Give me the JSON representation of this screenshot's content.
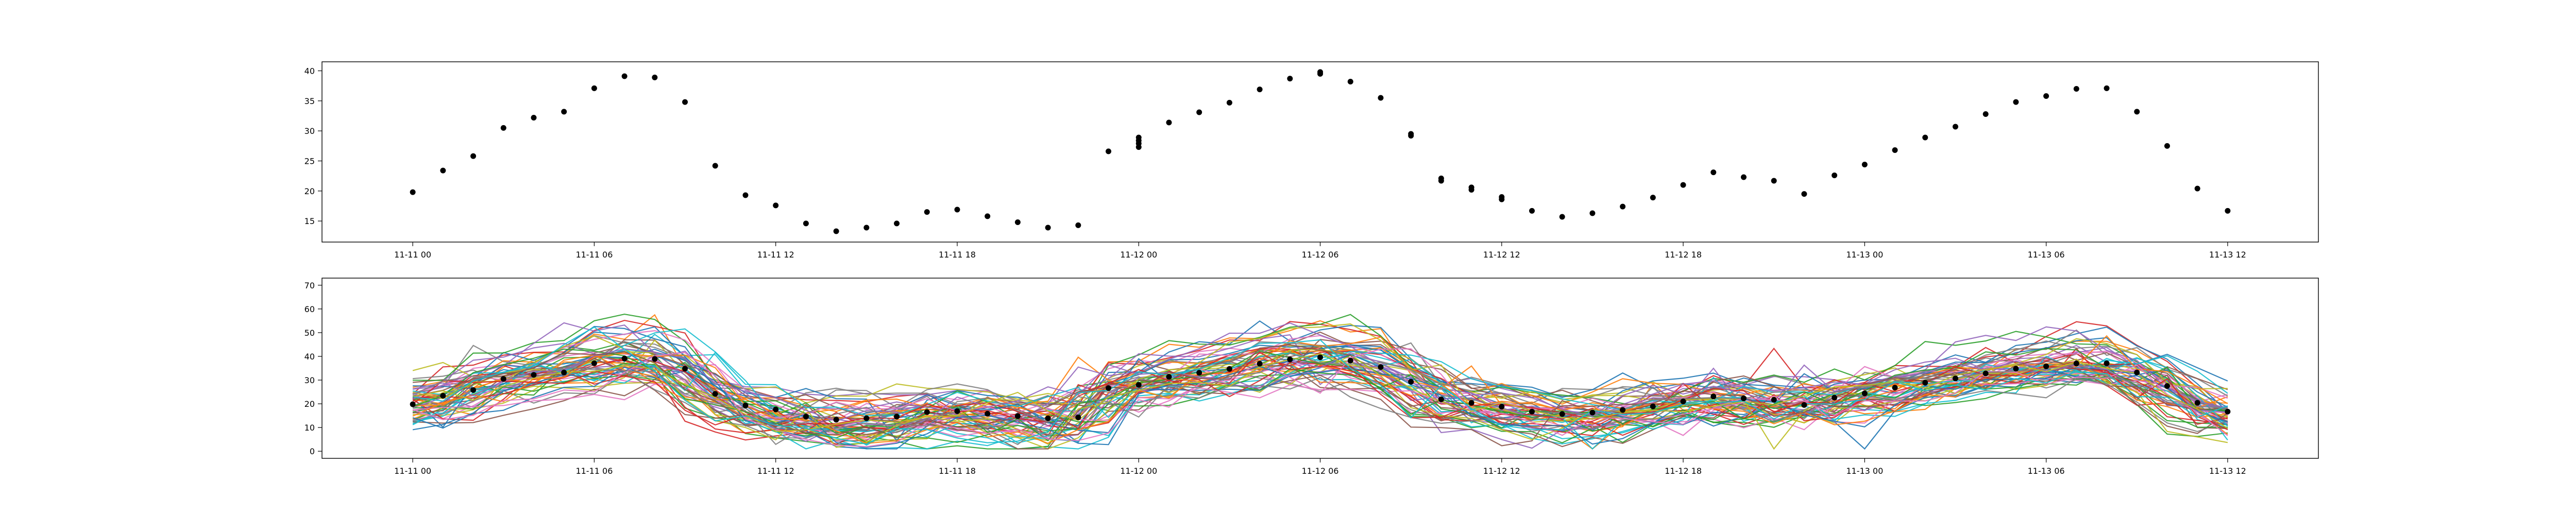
{
  "chart_data": [
    {
      "type": "scatter",
      "x_tick_labels": [
        "11-11 00",
        "11-11 06",
        "11-11 12",
        "11-11 18",
        "11-12 00",
        "11-12 06",
        "11-12 12",
        "11-12 18",
        "11-13 00",
        "11-13 06",
        "11-13 12"
      ],
      "x_ticks_hours": [
        0,
        6,
        12,
        18,
        24,
        30,
        36,
        42,
        48,
        54,
        60
      ],
      "xlim_hours": [
        -3,
        63
      ],
      "ylim": [
        11.5,
        41.5
      ],
      "y_ticks": [
        15,
        20,
        25,
        30,
        35,
        40
      ],
      "marker_color": "#000000",
      "points": [
        [
          0,
          19.8
        ],
        [
          1,
          23.4
        ],
        [
          2,
          25.8
        ],
        [
          3,
          30.5
        ],
        [
          4,
          32.2
        ],
        [
          5,
          33.2
        ],
        [
          6,
          37.1
        ],
        [
          7,
          39.1
        ],
        [
          8,
          38.9
        ],
        [
          9,
          34.8
        ],
        [
          10,
          24.2
        ],
        [
          11,
          19.3
        ],
        [
          12,
          17.6
        ],
        [
          13,
          14.6
        ],
        [
          14,
          13.3
        ],
        [
          15,
          13.9
        ],
        [
          16,
          14.6
        ],
        [
          17,
          16.5
        ],
        [
          18,
          16.9
        ],
        [
          19,
          15.8
        ],
        [
          20,
          14.8
        ],
        [
          21,
          13.9
        ],
        [
          22,
          14.3
        ],
        [
          23,
          26.6
        ],
        [
          24,
          27.3
        ],
        [
          24,
          27.9
        ],
        [
          24,
          28.4
        ],
        [
          24,
          28.9
        ],
        [
          25,
          31.4
        ],
        [
          26,
          33.1
        ],
        [
          27,
          34.7
        ],
        [
          28,
          36.9
        ],
        [
          29,
          38.7
        ],
        [
          30,
          39.5
        ],
        [
          30,
          39.8
        ],
        [
          31,
          38.2
        ],
        [
          32,
          35.5
        ],
        [
          33,
          29.2
        ],
        [
          33,
          29.5
        ],
        [
          34,
          22.1
        ],
        [
          34,
          21.7
        ],
        [
          35,
          20.6
        ],
        [
          35,
          20.2
        ],
        [
          36,
          19.0
        ],
        [
          36,
          18.6
        ],
        [
          37,
          16.7
        ],
        [
          38,
          15.7
        ],
        [
          39,
          16.3
        ],
        [
          40,
          17.4
        ],
        [
          41,
          18.9
        ],
        [
          42,
          21.0
        ],
        [
          43,
          23.1
        ],
        [
          44,
          22.3
        ],
        [
          45,
          21.7
        ],
        [
          46,
          19.5
        ],
        [
          47,
          22.6
        ],
        [
          48,
          24.4
        ],
        [
          49,
          26.8
        ],
        [
          50,
          28.9
        ],
        [
          51,
          30.7
        ],
        [
          52,
          32.8
        ],
        [
          53,
          34.8
        ],
        [
          54,
          35.8
        ],
        [
          55,
          37.0
        ],
        [
          56,
          37.1
        ],
        [
          57,
          33.2
        ],
        [
          58,
          27.5
        ],
        [
          59,
          20.4
        ],
        [
          60,
          16.7
        ]
      ]
    },
    {
      "type": "line",
      "x_tick_labels": [
        "11-11 00",
        "11-11 06",
        "11-11 12",
        "11-11 18",
        "11-12 00",
        "11-12 06",
        "11-12 12",
        "11-12 18",
        "11-13 00",
        "11-13 06",
        "11-13 12"
      ],
      "x_ticks_hours": [
        0,
        6,
        12,
        18,
        24,
        30,
        36,
        42,
        48,
        54,
        60
      ],
      "xlim_hours": [
        -3,
        63
      ],
      "ylim": [
        -3,
        73
      ],
      "y_ticks": [
        0,
        10,
        20,
        30,
        40,
        50,
        60,
        70
      ],
      "ensemble_member_count": 60,
      "ensemble_colors": [
        "#1f77b4",
        "#ff7f0e",
        "#2ca02c",
        "#d62728",
        "#9467bd",
        "#8c564b",
        "#e377c2",
        "#7f7f7f",
        "#bcbd22",
        "#17becf"
      ],
      "observed_marker_color": "#000000",
      "observed": [
        [
          0,
          19.8
        ],
        [
          1,
          23.4
        ],
        [
          2,
          25.8
        ],
        [
          3,
          30.5
        ],
        [
          4,
          32.2
        ],
        [
          5,
          33.2
        ],
        [
          6,
          37.1
        ],
        [
          7,
          39.1
        ],
        [
          8,
          38.9
        ],
        [
          9,
          34.8
        ],
        [
          10,
          24.2
        ],
        [
          11,
          19.3
        ],
        [
          12,
          17.6
        ],
        [
          13,
          14.6
        ],
        [
          14,
          13.3
        ],
        [
          15,
          13.9
        ],
        [
          16,
          14.6
        ],
        [
          17,
          16.5
        ],
        [
          18,
          16.9
        ],
        [
          19,
          15.8
        ],
        [
          20,
          14.8
        ],
        [
          21,
          13.9
        ],
        [
          22,
          14.3
        ],
        [
          23,
          26.6
        ],
        [
          24,
          28.0
        ],
        [
          25,
          31.4
        ],
        [
          26,
          33.1
        ],
        [
          27,
          34.7
        ],
        [
          28,
          36.9
        ],
        [
          29,
          38.7
        ],
        [
          30,
          39.6
        ],
        [
          31,
          38.2
        ],
        [
          32,
          35.5
        ],
        [
          33,
          29.3
        ],
        [
          34,
          21.9
        ],
        [
          35,
          20.4
        ],
        [
          36,
          18.8
        ],
        [
          37,
          16.7
        ],
        [
          38,
          15.7
        ],
        [
          39,
          16.3
        ],
        [
          40,
          17.4
        ],
        [
          41,
          18.9
        ],
        [
          42,
          21.0
        ],
        [
          43,
          23.1
        ],
        [
          44,
          22.3
        ],
        [
          45,
          21.7
        ],
        [
          46,
          19.5
        ],
        [
          47,
          22.6
        ],
        [
          48,
          24.4
        ],
        [
          49,
          26.8
        ],
        [
          50,
          28.9
        ],
        [
          51,
          30.7
        ],
        [
          52,
          32.8
        ],
        [
          53,
          34.8
        ],
        [
          54,
          35.8
        ],
        [
          55,
          37.0
        ],
        [
          56,
          37.1
        ],
        [
          57,
          33.2
        ],
        [
          58,
          27.5
        ],
        [
          59,
          20.4
        ],
        [
          60,
          16.7
        ]
      ]
    }
  ]
}
